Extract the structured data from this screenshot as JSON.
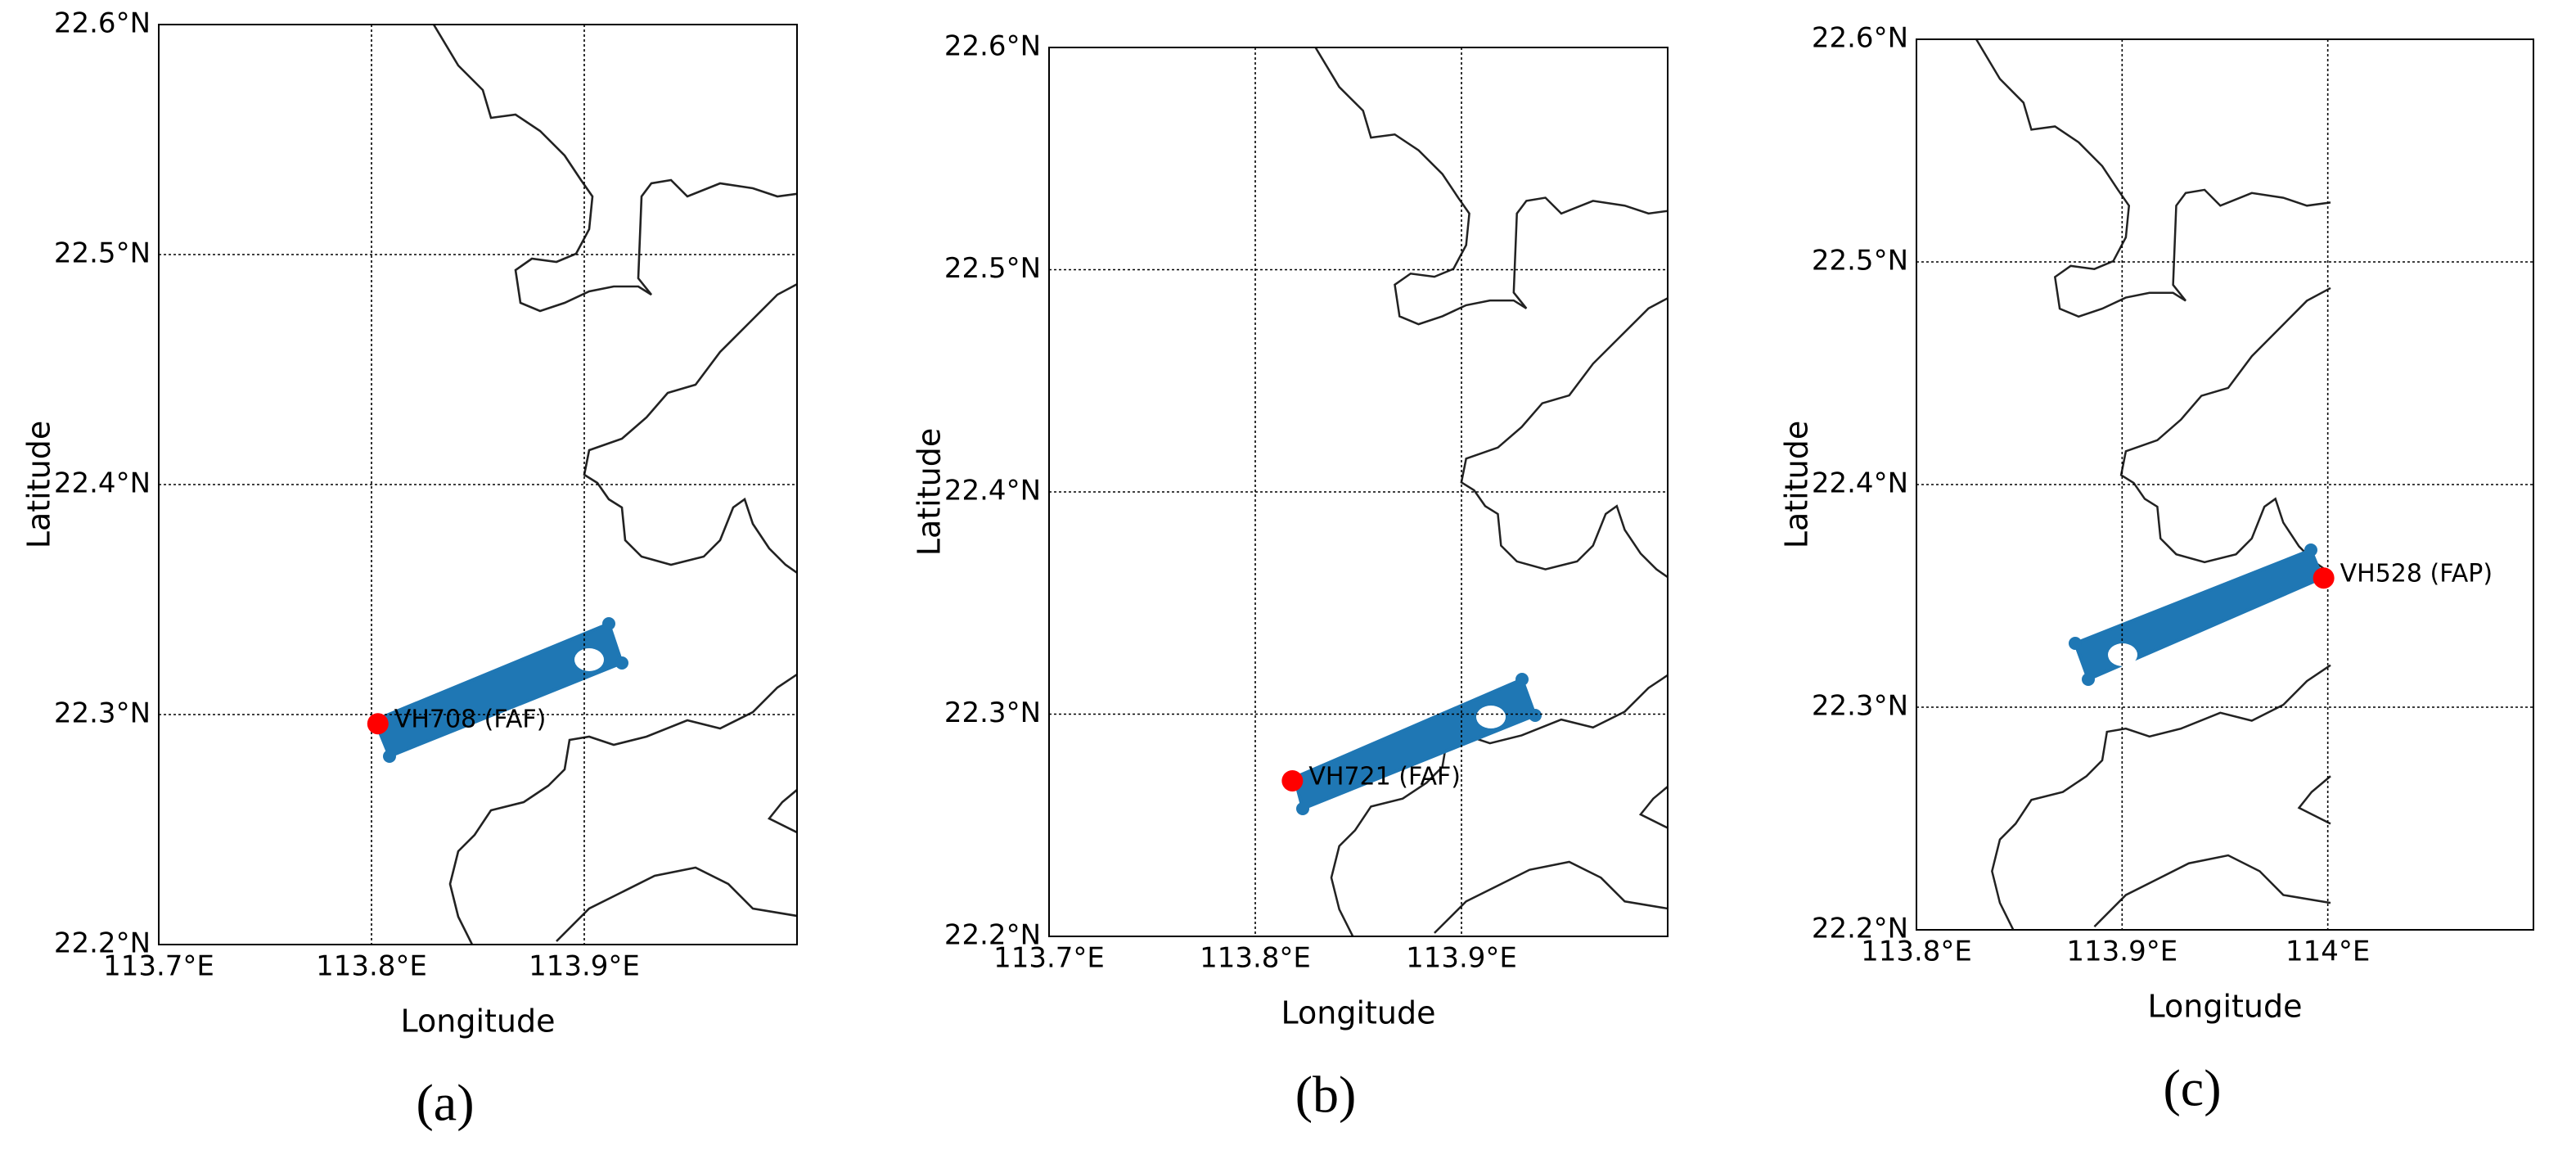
{
  "chart_data": [
    {
      "type": "scatter",
      "caption": "(a)",
      "x_label": "Longitude",
      "y_label": "Latitude",
      "x": [
        113.803
      ],
      "values": [
        22.296
      ],
      "point_labels": [
        "VH708 (FAF)"
      ],
      "color": "#ff0000",
      "grid": true,
      "xlim": [
        113.7,
        114.0
      ],
      "ylim": [
        22.2,
        22.6
      ],
      "xticks": [
        {
          "value": 113.7,
          "label": "113.7°E"
        },
        {
          "value": 113.8,
          "label": "113.8°E"
        },
        {
          "value": 113.9,
          "label": "113.9°E"
        }
      ],
      "yticks": [
        {
          "value": 22.2,
          "label": "22.2°N"
        },
        {
          "value": 22.3,
          "label": "22.3°N"
        },
        {
          "value": 22.4,
          "label": "22.4°N"
        },
        {
          "value": 22.5,
          "label": "22.5°N"
        },
        {
          "value": 22.6,
          "label": "22.6°N"
        }
      ]
    },
    {
      "type": "scatter",
      "caption": "(b)",
      "x_label": "Longitude",
      "y_label": "Latitude",
      "x": [
        113.818
      ],
      "values": [
        22.27
      ],
      "point_labels": [
        "VH721 (FAF)"
      ],
      "color": "#ff0000",
      "grid": true,
      "xlim": [
        113.7,
        114.0
      ],
      "ylim": [
        22.2,
        22.6
      ],
      "xticks": [
        {
          "value": 113.7,
          "label": "113.7°E"
        },
        {
          "value": 113.8,
          "label": "113.8°E"
        },
        {
          "value": 113.9,
          "label": "113.9°E"
        }
      ],
      "yticks": [
        {
          "value": 22.2,
          "label": "22.2°N"
        },
        {
          "value": 22.3,
          "label": "22.3°N"
        },
        {
          "value": 22.4,
          "label": "22.4°N"
        },
        {
          "value": 22.5,
          "label": "22.5°N"
        },
        {
          "value": 22.6,
          "label": "22.6°N"
        }
      ]
    },
    {
      "type": "scatter",
      "caption": "(c)",
      "x_label": "Longitude",
      "y_label": "Latitude",
      "x": [
        113.998
      ],
      "values": [
        22.358
      ],
      "point_labels": [
        "VH528 (FAP)"
      ],
      "color": "#ff0000",
      "grid": true,
      "xlim": [
        113.8,
        114.1
      ],
      "ylim": [
        22.2,
        22.6
      ],
      "xticks": [
        {
          "value": 113.8,
          "label": "113.8°E"
        },
        {
          "value": 113.9,
          "label": "113.9°E"
        },
        {
          "value": 114.0,
          "label": "114°E"
        }
      ],
      "yticks": [
        {
          "value": 22.2,
          "label": "22.2°N"
        },
        {
          "value": 22.3,
          "label": "22.3°N"
        },
        {
          "value": 22.4,
          "label": "22.4°N"
        },
        {
          "value": 22.5,
          "label": "22.5°N"
        },
        {
          "value": 22.6,
          "label": "22.6°N"
        }
      ]
    }
  ]
}
